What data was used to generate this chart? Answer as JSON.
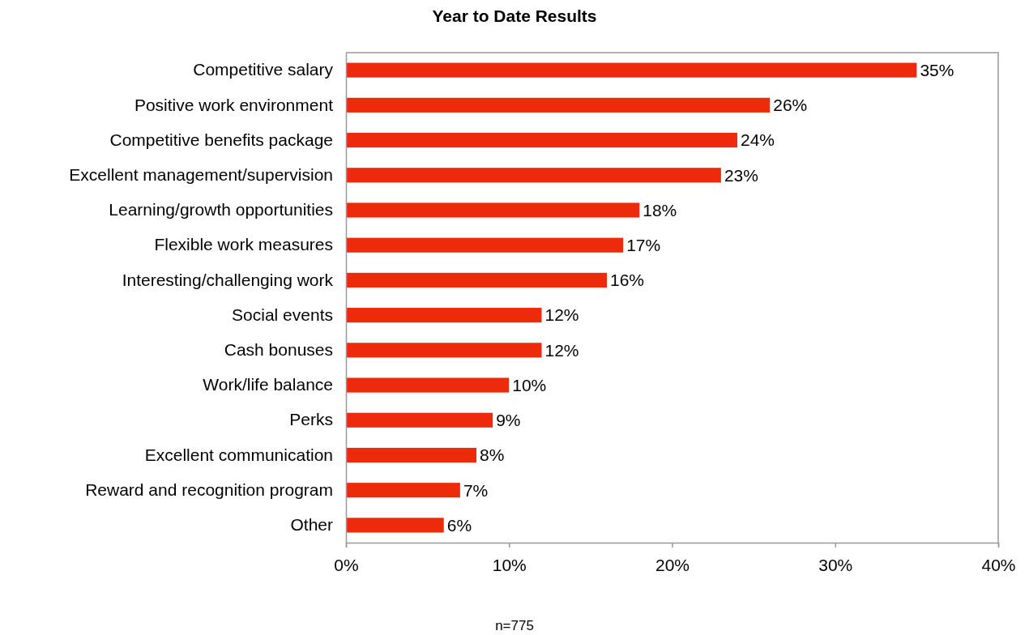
{
  "chart_data": {
    "type": "bar",
    "orientation": "horizontal",
    "title": "Year to Date Results",
    "categories": [
      "Competitive salary",
      "Positive work environment",
      "Competitive benefits package",
      "Excellent management/supervision",
      "Learning/growth opportunities",
      "Flexible work measures",
      "Interesting/challenging work",
      "Social events",
      "Cash bonuses",
      "Work/life balance",
      "Perks",
      "Excellent communication",
      "Reward and recognition program",
      "Other"
    ],
    "values": [
      35,
      26,
      24,
      23,
      18,
      17,
      16,
      12,
      12,
      10,
      9,
      8,
      7,
      6
    ],
    "value_labels": [
      "35%",
      "26%",
      "24%",
      "23%",
      "18%",
      "17%",
      "16%",
      "12%",
      "12%",
      "10%",
      "9%",
      "8%",
      "7%",
      "6%"
    ],
    "color": "#ee2a0c",
    "xlim": [
      0,
      40
    ],
    "xticks": [
      {
        "value": 0,
        "label": "0%"
      },
      {
        "value": 10,
        "label": "10%"
      },
      {
        "value": 20,
        "label": "20%"
      },
      {
        "value": 30,
        "label": "30%"
      },
      {
        "value": 40,
        "label": "40%"
      }
    ],
    "grid": false,
    "annotations": [
      "n=775"
    ]
  }
}
